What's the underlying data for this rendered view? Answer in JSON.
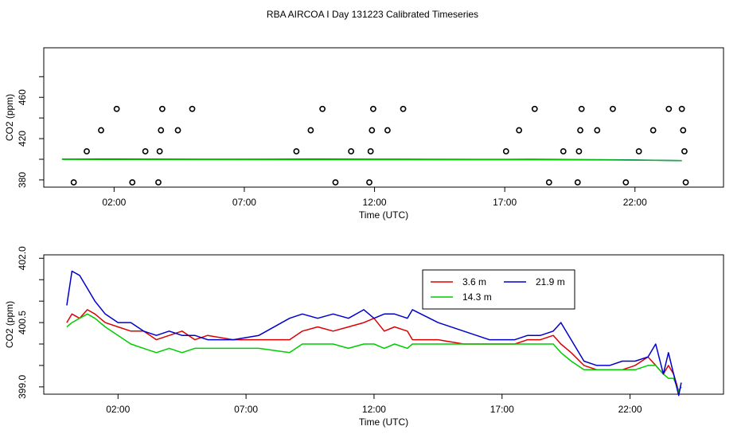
{
  "figure_title": "RBA AIRCOA I  Day 131223  Calibrated Timeseries",
  "colors": {
    "red": "#dd0000",
    "green": "#00cc00",
    "blue": "#0000cc",
    "axis": "#000000"
  },
  "chart_data": [
    {
      "type": "scatter",
      "title": "",
      "xlabel": "Time (UTC)",
      "ylabel": "CO2 (ppm)",
      "xlim": [
        -0.7,
        25.4
      ],
      "ylim": [
        373,
        508
      ],
      "x_ticks": [
        2,
        7,
        12,
        17,
        22
      ],
      "x_tick_labels": [
        "02:00",
        "07:00",
        "12:00",
        "17:00",
        "22:00"
      ],
      "y_ticks": [
        380,
        420,
        460
      ],
      "y_tick_labels": [
        "380",
        "420",
        "460"
      ],
      "y_minor_ticks": [
        400,
        440,
        480
      ],
      "series": [
        {
          "name": "outliers",
          "marker": "open-circle",
          "points": [
            [
              0.45,
              377.6
            ],
            [
              0.95,
              407.7
            ],
            [
              1.5,
              428.1
            ],
            [
              2.1,
              448.8
            ],
            [
              2.7,
              377.6
            ],
            [
              3.2,
              407.7
            ],
            [
              3.7,
              377.6
            ],
            [
              3.75,
              407.7
            ],
            [
              3.8,
              428.1
            ],
            [
              3.85,
              448.8
            ],
            [
              4.45,
              428.1
            ],
            [
              5.0,
              448.8
            ],
            [
              9.0,
              407.7
            ],
            [
              9.55,
              428.1
            ],
            [
              10.0,
              448.8
            ],
            [
              10.5,
              377.6
            ],
            [
              11.1,
              407.7
            ],
            [
              11.8,
              377.6
            ],
            [
              11.85,
              407.7
            ],
            [
              11.9,
              428.1
            ],
            [
              11.95,
              448.8
            ],
            [
              12.5,
              428.1
            ],
            [
              13.1,
              448.8
            ],
            [
              17.05,
              407.7
            ],
            [
              17.55,
              428.1
            ],
            [
              18.15,
              448.8
            ],
            [
              18.7,
              377.6
            ],
            [
              19.25,
              407.7
            ],
            [
              19.8,
              377.6
            ],
            [
              19.85,
              407.7
            ],
            [
              19.9,
              428.1
            ],
            [
              19.95,
              448.8
            ],
            [
              20.55,
              428.1
            ],
            [
              21.15,
              448.8
            ],
            [
              21.65,
              377.6
            ],
            [
              22.15,
              407.7
            ],
            [
              22.7,
              428.1
            ],
            [
              23.3,
              448.8
            ],
            [
              23.8,
              448.8
            ],
            [
              23.85,
              428.1
            ],
            [
              23.9,
              407.7
            ],
            [
              23.95,
              377.6
            ]
          ]
        },
        {
          "name": "21.9 m",
          "color": "#0000cc",
          "x": [
            0,
            2,
            4,
            6,
            8,
            10,
            12,
            14,
            16,
            18,
            20,
            22,
            23.8
          ],
          "y": [
            400.1,
            400.2,
            400.1,
            400.0,
            400.0,
            400.1,
            400.0,
            399.9,
            399.8,
            399.9,
            399.6,
            399.3,
            398.7
          ]
        },
        {
          "name": "14.3 m",
          "color": "#00cc00",
          "x": [
            0,
            3,
            6,
            9,
            12,
            15,
            18,
            21,
            23.8
          ],
          "y": [
            399.9,
            399.8,
            399.7,
            399.6,
            399.6,
            399.5,
            399.5,
            399.3,
            398.8
          ]
        }
      ]
    },
    {
      "type": "line",
      "title": "",
      "xlabel": "Time (UTC)",
      "ylabel": "CO2 (ppm)",
      "xlim": [
        -0.9,
        25.65
      ],
      "ylim": [
        398.83,
        402.08
      ],
      "x_ticks": [
        2,
        7,
        12,
        17,
        22
      ],
      "x_tick_labels": [
        "02:00",
        "07:00",
        "12:00",
        "17:00",
        "22:00"
      ],
      "y_ticks": [
        399.0,
        400.5,
        402.0
      ],
      "y_tick_labels": [
        "399.0",
        "400.5",
        "402.0"
      ],
      "y_minor_ticks": [
        399.5,
        400.0,
        401.0,
        401.5
      ],
      "legend": {
        "position": "top-right",
        "entries": [
          {
            "label": "3.6 m",
            "color": "#dd0000"
          },
          {
            "label": "14.3 m",
            "color": "#00cc00"
          },
          {
            "label": "21.9 m",
            "color": "#0000cc"
          }
        ]
      },
      "series": [
        {
          "name": "3.6 m",
          "color": "#dd0000",
          "x": [
            0,
            0.2,
            0.5,
            0.8,
            1.1,
            1.5,
            2.0,
            2.5,
            3.0,
            3.5,
            4.0,
            4.5,
            5.0,
            5.5,
            6.5,
            7.5,
            8.7,
            9.2,
            9.8,
            10.4,
            11.0,
            11.6,
            12.0,
            12.4,
            12.8,
            13.3,
            13.5,
            14.5,
            15.5,
            16.5,
            17.0,
            17.5,
            18.0,
            18.5,
            19.0,
            19.3,
            19.7,
            20.2,
            20.7,
            21.2,
            21.7,
            22.2,
            22.7,
            23.0,
            23.3,
            23.5,
            23.7,
            23.9,
            24.0
          ],
          "y": [
            400.5,
            400.7,
            400.6,
            400.8,
            400.7,
            400.5,
            400.4,
            400.3,
            400.3,
            400.1,
            400.2,
            400.3,
            400.1,
            400.2,
            400.1,
            400.1,
            400.1,
            400.3,
            400.4,
            400.3,
            400.4,
            400.5,
            400.6,
            400.3,
            400.4,
            400.3,
            400.1,
            400.1,
            400.0,
            400.0,
            400.0,
            400.0,
            400.1,
            400.1,
            400.2,
            400.0,
            399.8,
            399.5,
            399.4,
            399.4,
            399.4,
            399.5,
            399.7,
            399.5,
            399.3,
            399.5,
            399.3,
            398.9,
            399.0
          ]
        },
        {
          "name": "14.3 m",
          "color": "#00cc00",
          "x": [
            0,
            0.2,
            0.5,
            0.8,
            1.1,
            1.5,
            2.0,
            2.5,
            3.0,
            3.5,
            4.0,
            4.5,
            5.0,
            5.5,
            6.5,
            7.5,
            8.7,
            9.2,
            9.8,
            10.4,
            11.0,
            11.6,
            12.0,
            12.4,
            12.8,
            13.3,
            13.5,
            14.5,
            15.5,
            16.5,
            17.0,
            17.5,
            18.0,
            18.5,
            19.0,
            19.3,
            19.7,
            20.2,
            20.7,
            21.2,
            21.7,
            22.2,
            22.7,
            23.0,
            23.3,
            23.5,
            23.7,
            23.9,
            24.0
          ],
          "y": [
            400.4,
            400.5,
            400.6,
            400.7,
            400.6,
            400.4,
            400.2,
            400.0,
            399.9,
            399.8,
            399.9,
            399.8,
            399.9,
            399.9,
            399.9,
            399.9,
            399.8,
            400.0,
            400.0,
            400.0,
            399.9,
            400.0,
            400.0,
            399.9,
            400.0,
            399.9,
            400.0,
            400.0,
            400.0,
            400.0,
            400.0,
            400.0,
            400.0,
            400.0,
            400.0,
            399.8,
            399.6,
            399.4,
            399.4,
            399.4,
            399.4,
            399.4,
            399.5,
            399.5,
            399.3,
            399.2,
            399.2,
            398.9,
            399.0
          ]
        },
        {
          "name": "21.9 m",
          "color": "#0000cc",
          "x": [
            0,
            0.2,
            0.5,
            0.8,
            1.1,
            1.5,
            2.0,
            2.5,
            3.0,
            3.5,
            4.0,
            4.5,
            5.0,
            5.5,
            6.5,
            7.5,
            8.7,
            9.2,
            9.8,
            10.4,
            11.0,
            11.6,
            12.0,
            12.4,
            12.8,
            13.3,
            13.5,
            14.5,
            15.5,
            16.5,
            17.0,
            17.5,
            18.0,
            18.5,
            19.0,
            19.3,
            19.7,
            20.2,
            20.7,
            21.2,
            21.7,
            22.2,
            22.7,
            23.0,
            23.3,
            23.5,
            23.7,
            23.9,
            24.0
          ],
          "y": [
            400.9,
            401.7,
            401.6,
            401.3,
            401.0,
            400.7,
            400.5,
            400.5,
            400.3,
            400.2,
            400.3,
            400.2,
            400.2,
            400.1,
            400.1,
            400.2,
            400.6,
            400.7,
            400.6,
            400.7,
            400.6,
            400.8,
            400.6,
            400.7,
            400.7,
            400.6,
            400.8,
            400.5,
            400.3,
            400.1,
            400.1,
            400.1,
            400.2,
            400.2,
            400.3,
            400.5,
            400.1,
            399.6,
            399.5,
            399.5,
            399.6,
            399.6,
            399.7,
            400.0,
            399.3,
            399.8,
            399.3,
            398.8,
            399.1
          ]
        }
      ]
    }
  ]
}
